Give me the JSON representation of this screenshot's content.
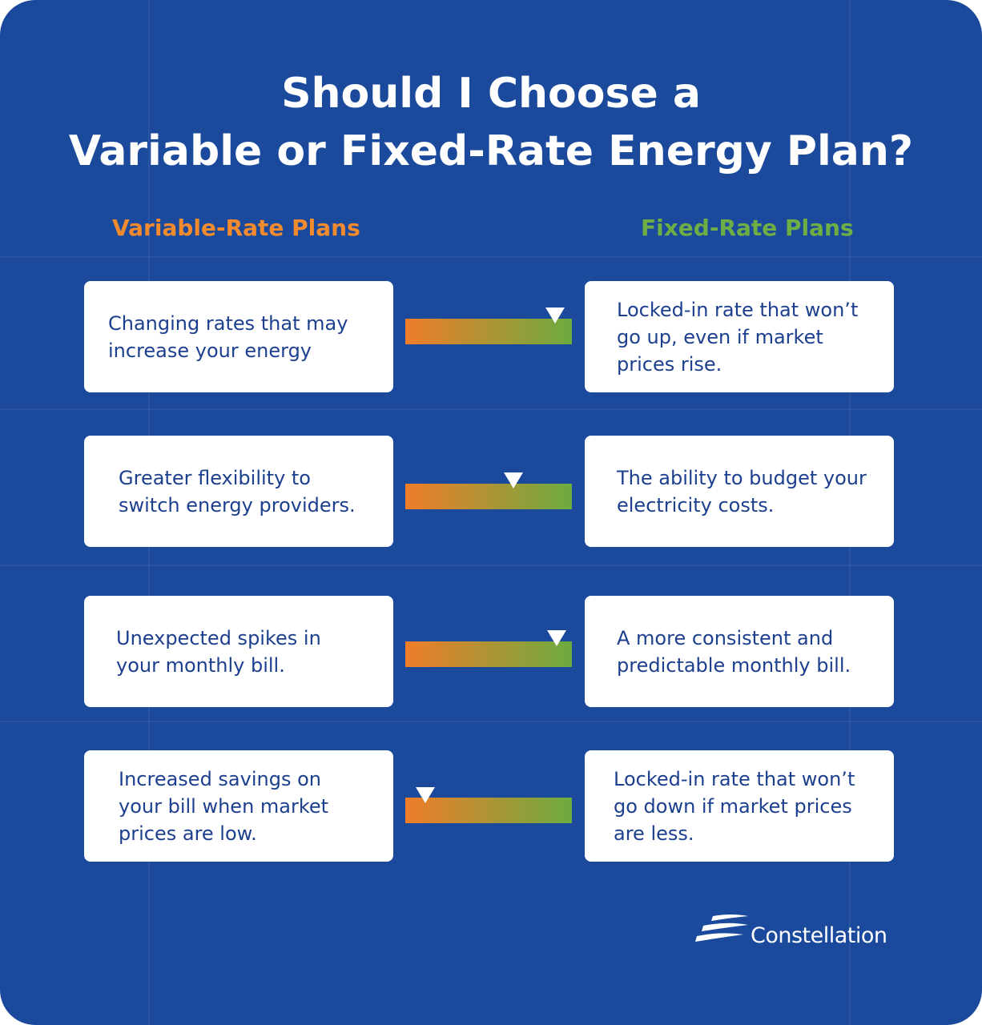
{
  "title": {
    "lines": [
      "Should I Choose a",
      "Variable or Fixed-Rate Energy Plan?"
    ]
  },
  "columns": {
    "left": "Variable-Rate Plans",
    "right": "Fixed-Rate Plans"
  },
  "rows": [
    {
      "left": "Changing rates that may increase your energy",
      "right": "Locked-in rate that won’t go up, even if market prices rise."
    },
    {
      "left": "Greater flexibility to switch energy providers.",
      "right": "The ability to budget your electricity costs."
    },
    {
      "left": "Unexpected spikes in your monthly bill.",
      "right": "A more consistent and predictable monthly bill."
    },
    {
      "left": "Increased savings on your bill when market prices are low.",
      "right": "Locked-in rate that won’t go down if market prices are less."
    }
  ],
  "logo": "Constellation"
}
